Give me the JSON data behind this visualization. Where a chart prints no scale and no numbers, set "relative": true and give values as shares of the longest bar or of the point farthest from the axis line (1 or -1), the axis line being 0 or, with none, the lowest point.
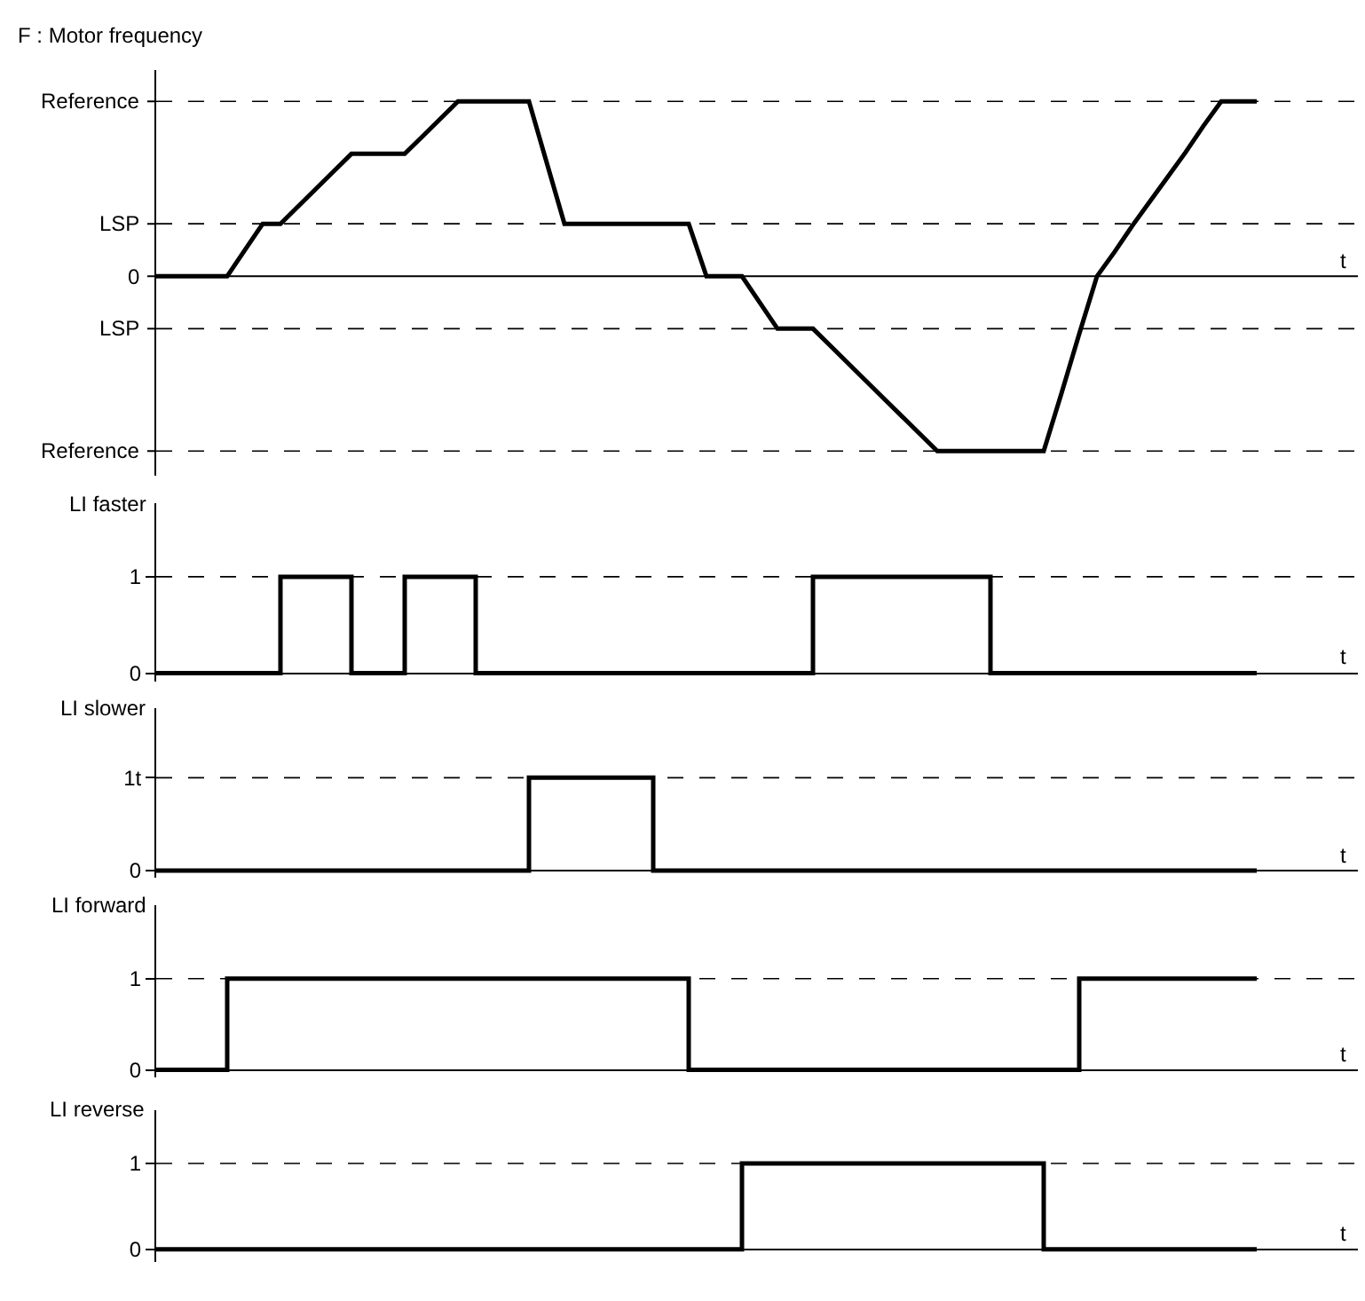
{
  "chart_data": [
    {
      "type": "line",
      "relative": true,
      "title": "F : Motor frequency",
      "xlabel": "t",
      "tick_labels": "y",
      "marker": "none",
      "line_style": "solid",
      "categories": [
        null,
        null,
        null,
        null,
        null,
        null,
        null,
        null,
        null,
        null,
        null,
        null,
        null,
        null,
        null,
        null,
        null,
        null,
        null,
        null,
        null,
        null,
        null,
        null,
        null,
        null,
        null,
        null,
        null,
        null,
        null,
        null,
        null,
        null,
        null,
        null,
        null,
        null,
        null,
        null,
        null,
        null,
        null,
        null,
        null,
        null,
        null,
        null,
        null,
        null,
        null,
        null,
        null,
        null,
        null,
        null,
        null,
        null,
        null,
        null,
        null,
        null,
        null
      ],
      "series": [
        {
          "color": "#000000",
          "values": [
            0,
            0,
            0,
            0,
            0,
            0.15,
            0.3,
            0.3,
            0.4,
            0.5,
            0.6,
            0.7,
            0.7,
            0.7,
            0.7,
            0.8,
            0.9,
            1,
            1,
            1,
            1,
            1,
            0.65,
            0.3,
            0.3,
            0.3,
            0.3,
            0.3,
            0.3,
            0.3,
            0.3,
            0,
            0,
            0,
            -0.15,
            -0.3,
            -0.3,
            -0.3,
            -0.4,
            -0.5,
            -0.6,
            -0.7,
            -0.8,
            -0.9,
            -1,
            -1,
            -1,
            -1,
            -1,
            -1,
            -1,
            -0.67,
            -0.33,
            0,
            0.14,
            0.29,
            0.43,
            0.57,
            0.71,
            0.86,
            1,
            1,
            1
          ]
        }
      ],
      "ref_lines": [
        {
          "axis": "y",
          "value": 1,
          "label": "Reference",
          "color": "#000000",
          "line_style": "dashed"
        },
        {
          "axis": "y",
          "value": 0.3,
          "label": "LSP",
          "color": "#000000",
          "line_style": "dashed"
        },
        {
          "axis": "y",
          "value": 0,
          "label": "0",
          "color": "#000000",
          "line_style": "solid"
        },
        {
          "axis": "y",
          "value": -0.3,
          "label": "LSP",
          "color": "#000000",
          "line_style": "dashed"
        },
        {
          "axis": "y",
          "value": -1,
          "label": "Reference",
          "color": "#000000",
          "line_style": "dashed"
        }
      ]
    },
    {
      "type": "step",
      "title": "LI faster",
      "xlabel": "t",
      "tick_labels": "y",
      "marker": "none",
      "line_style": "solid",
      "ylim": [
        -0.09,
        1.76
      ],
      "yticks": [
        0,
        1
      ],
      "categories": [
        null,
        null,
        null,
        null,
        null,
        null,
        null,
        null,
        null,
        null,
        null,
        null,
        null,
        null,
        null,
        null,
        null,
        null,
        null,
        null,
        null,
        null,
        null,
        null,
        null,
        null,
        null,
        null,
        null,
        null,
        null,
        null,
        null,
        null,
        null,
        null,
        null,
        null,
        null,
        null,
        null,
        null,
        null,
        null,
        null,
        null,
        null,
        null,
        null,
        null,
        null,
        null,
        null,
        null,
        null,
        null,
        null,
        null,
        null,
        null,
        null,
        null,
        null
      ],
      "series": [
        {
          "color": "#000000",
          "values": [
            0,
            0,
            0,
            0,
            0,
            0,
            0,
            1,
            1,
            1,
            1,
            0,
            0,
            0,
            1,
            1,
            1,
            1,
            0,
            0,
            0,
            0,
            0,
            0,
            0,
            0,
            0,
            0,
            0,
            0,
            0,
            0,
            0,
            0,
            0,
            0,
            0,
            1,
            1,
            1,
            1,
            1,
            1,
            1,
            1,
            1,
            1,
            0,
            0,
            0,
            0,
            0,
            0,
            0,
            0,
            0,
            0,
            0,
            0,
            0,
            0,
            0,
            0
          ]
        }
      ],
      "ref_lines": [
        {
          "axis": "y",
          "value": 1,
          "color": "#000000",
          "line_style": "dashed"
        }
      ]
    },
    {
      "type": "step",
      "title": "LI slower",
      "xlabel": "t",
      "tick_labels": "y",
      "marker": "none",
      "line_style": "solid",
      "ylim": [
        -0.075,
        1.75
      ],
      "yticks": [
        0,
        {
          "value": 1,
          "label": "1t"
        }
      ],
      "categories": [
        null,
        null,
        null,
        null,
        null,
        null,
        null,
        null,
        null,
        null,
        null,
        null,
        null,
        null,
        null,
        null,
        null,
        null,
        null,
        null,
        null,
        null,
        null,
        null,
        null,
        null,
        null,
        null,
        null,
        null,
        null,
        null,
        null,
        null,
        null,
        null,
        null,
        null,
        null,
        null,
        null,
        null,
        null,
        null,
        null,
        null,
        null,
        null,
        null,
        null,
        null,
        null,
        null,
        null,
        null,
        null,
        null,
        null,
        null,
        null,
        null,
        null,
        null
      ],
      "series": [
        {
          "color": "#000000",
          "values": [
            0,
            0,
            0,
            0,
            0,
            0,
            0,
            0,
            0,
            0,
            0,
            0,
            0,
            0,
            0,
            0,
            0,
            0,
            0,
            0,
            0,
            1,
            1,
            1,
            1,
            1,
            1,
            1,
            0,
            0,
            0,
            0,
            0,
            0,
            0,
            0,
            0,
            0,
            0,
            0,
            0,
            0,
            0,
            0,
            0,
            0,
            0,
            0,
            0,
            0,
            0,
            0,
            0,
            0,
            0,
            0,
            0,
            0,
            0,
            0,
            0,
            0,
            0
          ]
        }
      ],
      "ref_lines": [
        {
          "axis": "y",
          "value": 1,
          "color": "#000000",
          "line_style": "dashed"
        }
      ]
    },
    {
      "type": "step",
      "title": "LI forward",
      "xlabel": "t",
      "tick_labels": "y",
      "marker": "none",
      "line_style": "solid",
      "ylim": [
        -0.077,
        1.8
      ],
      "yticks": [
        0,
        1
      ],
      "categories": [
        null,
        null,
        null,
        null,
        null,
        null,
        null,
        null,
        null,
        null,
        null,
        null,
        null,
        null,
        null,
        null,
        null,
        null,
        null,
        null,
        null,
        null,
        null,
        null,
        null,
        null,
        null,
        null,
        null,
        null,
        null,
        null,
        null,
        null,
        null,
        null,
        null,
        null,
        null,
        null,
        null,
        null,
        null,
        null,
        null,
        null,
        null,
        null,
        null,
        null,
        null,
        null,
        null,
        null,
        null,
        null,
        null,
        null,
        null,
        null,
        null,
        null,
        null
      ],
      "series": [
        {
          "color": "#000000",
          "values": [
            0,
            0,
            0,
            0,
            1,
            1,
            1,
            1,
            1,
            1,
            1,
            1,
            1,
            1,
            1,
            1,
            1,
            1,
            1,
            1,
            1,
            1,
            1,
            1,
            1,
            1,
            1,
            1,
            1,
            1,
            0,
            0,
            0,
            0,
            0,
            0,
            0,
            0,
            0,
            0,
            0,
            0,
            0,
            0,
            0,
            0,
            0,
            0,
            0,
            0,
            0,
            0,
            1,
            1,
            1,
            1,
            1,
            1,
            1,
            1,
            1,
            1,
            1
          ]
        }
      ],
      "ref_lines": [
        {
          "axis": "y",
          "value": 1,
          "color": "#000000",
          "line_style": "dashed"
        }
      ]
    },
    {
      "type": "step",
      "title": "LI reverse",
      "xlabel": "t",
      "tick_labels": "y",
      "marker": "none",
      "line_style": "solid",
      "ylim": [
        -0.15,
        1.62
      ],
      "yticks": [
        0,
        1
      ],
      "categories": [
        null,
        null,
        null,
        null,
        null,
        null,
        null,
        null,
        null,
        null,
        null,
        null,
        null,
        null,
        null,
        null,
        null,
        null,
        null,
        null,
        null,
        null,
        null,
        null,
        null,
        null,
        null,
        null,
        null,
        null,
        null,
        null,
        null,
        null,
        null,
        null,
        null,
        null,
        null,
        null,
        null,
        null,
        null,
        null,
        null,
        null,
        null,
        null,
        null,
        null,
        null,
        null,
        null,
        null,
        null,
        null,
        null,
        null,
        null,
        null,
        null,
        null,
        null
      ],
      "series": [
        {
          "color": "#000000",
          "values": [
            0,
            0,
            0,
            0,
            0,
            0,
            0,
            0,
            0,
            0,
            0,
            0,
            0,
            0,
            0,
            0,
            0,
            0,
            0,
            0,
            0,
            0,
            0,
            0,
            0,
            0,
            0,
            0,
            0,
            0,
            0,
            0,
            0,
            1,
            1,
            1,
            1,
            1,
            1,
            1,
            1,
            1,
            1,
            1,
            1,
            1,
            1,
            1,
            1,
            1,
            0,
            0,
            0,
            0,
            0,
            0,
            0,
            0,
            0,
            0,
            0,
            0,
            0
          ]
        }
      ],
      "ref_lines": [
        {
          "axis": "y",
          "value": 1,
          "color": "#000000",
          "line_style": "dashed"
        }
      ]
    }
  ]
}
